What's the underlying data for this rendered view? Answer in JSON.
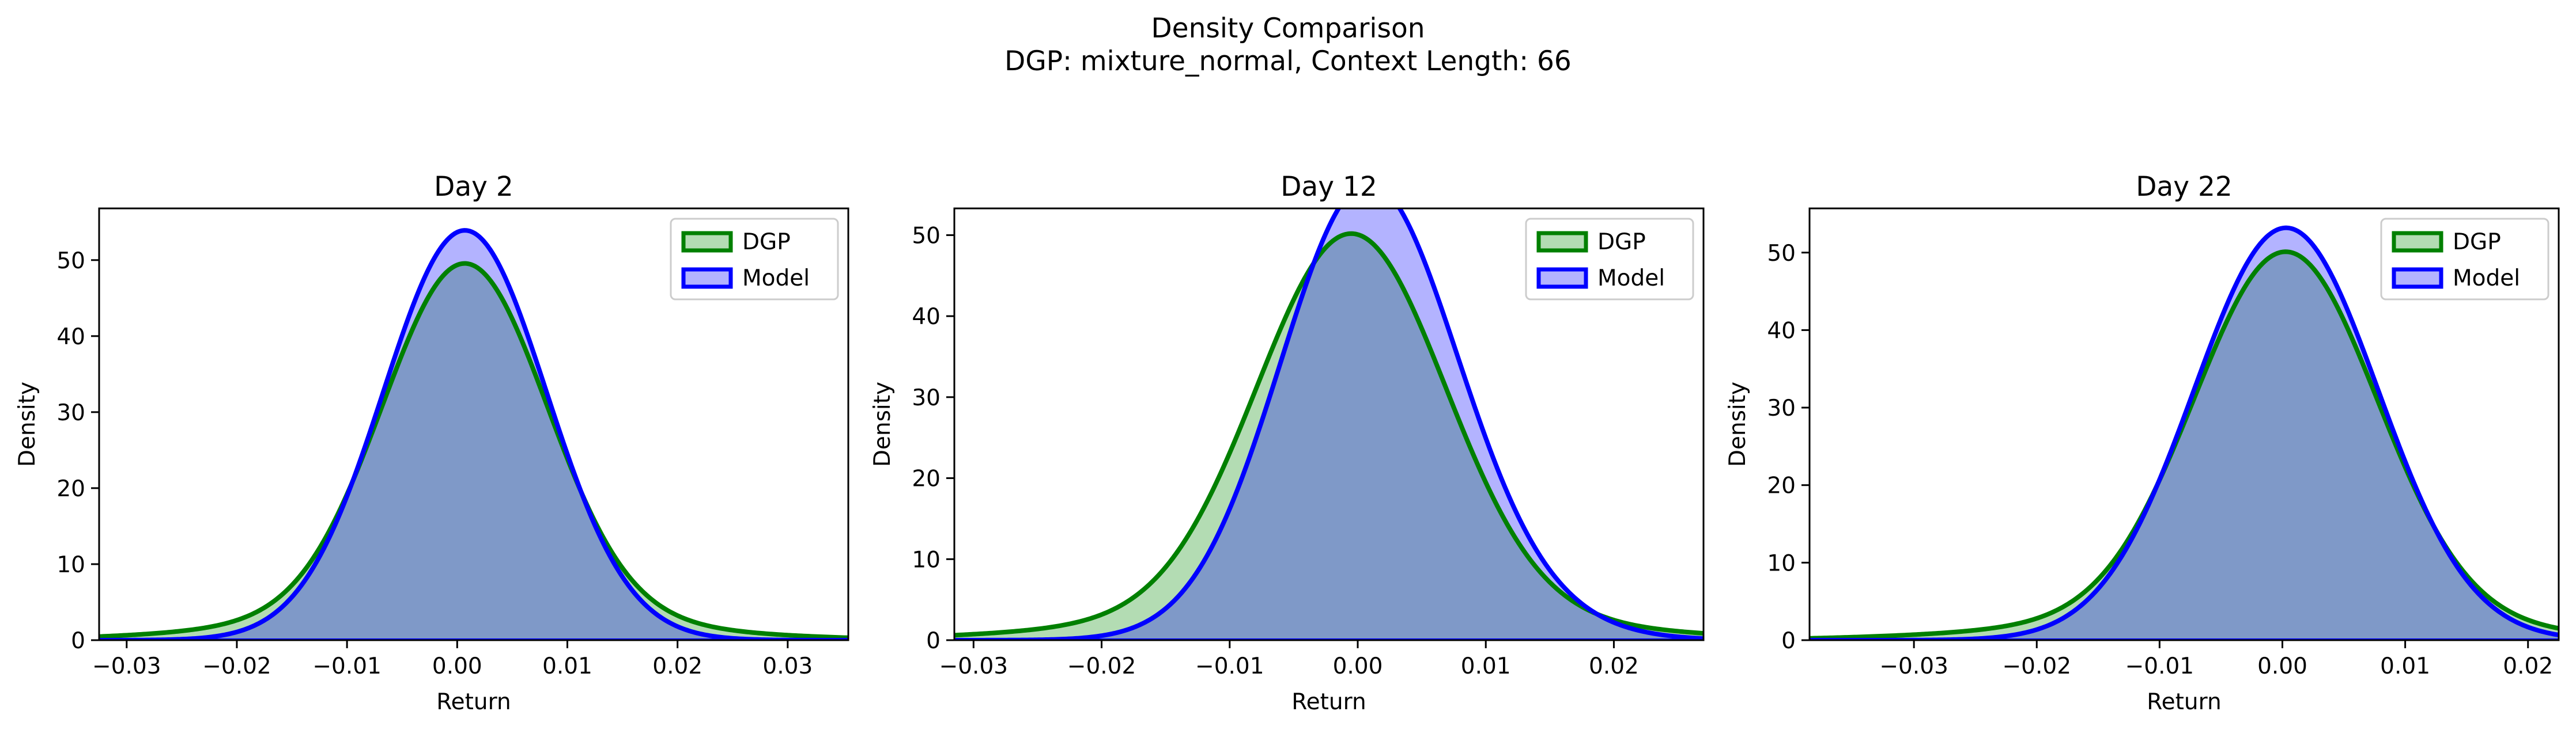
{
  "figure": {
    "title_line1": "Density Comparison",
    "title_line2": "DGP: mixture_normal, Context Length: 66"
  },
  "colors": {
    "dgp_line": "#008000",
    "dgp_fill": "#b3dcb3",
    "model_line": "#0000ff",
    "model_fill": "#b3b3ff",
    "overlap_fill": "#7f99c8"
  },
  "chart_data": [
    {
      "type": "area",
      "title": "Day 2",
      "xlabel": "Return",
      "ylabel": "Density",
      "xlim": [
        -0.0325,
        0.0355
      ],
      "ylim": [
        0,
        56.8
      ],
      "xticks": [
        -0.03,
        -0.02,
        -0.01,
        0.0,
        0.01,
        0.02,
        0.03
      ],
      "xtick_labels": [
        "−0.03",
        "−0.02",
        "−0.01",
        "0.00",
        "0.01",
        "0.02",
        "0.03"
      ],
      "yticks": [
        0,
        10,
        20,
        30,
        40,
        50
      ],
      "ytick_labels": [
        "0",
        "10",
        "20",
        "30",
        "40",
        "50"
      ],
      "legend": {
        "position": "top-right",
        "entries": [
          "DGP",
          "Model"
        ]
      },
      "series": [
        {
          "name": "DGP",
          "type": "normal_mixture",
          "components": [
            {
              "w": 0.85,
              "mu": 0.0007,
              "sigma": 0.0074
            },
            {
              "w": 0.15,
              "mu": 0.0,
              "sigma": 0.016
            }
          ]
        },
        {
          "name": "Model",
          "type": "normal_mixture",
          "components": [
            {
              "w": 1.0,
              "mu": 0.0007,
              "sigma": 0.0074
            }
          ]
        }
      ]
    },
    {
      "type": "area",
      "title": "Day 12",
      "xlabel": "Return",
      "ylabel": "Density",
      "xlim": [
        -0.0315,
        0.027
      ],
      "ylim": [
        0,
        53.3
      ],
      "xticks": [
        -0.03,
        -0.02,
        -0.01,
        0.0,
        0.01,
        0.02
      ],
      "xtick_labels": [
        "−0.03",
        "−0.02",
        "−0.01",
        "0.00",
        "0.01",
        "0.02"
      ],
      "yticks": [
        0,
        10,
        20,
        30,
        40,
        50
      ],
      "ytick_labels": [
        "0",
        "10",
        "20",
        "30",
        "40",
        "50"
      ],
      "legend": {
        "position": "top-right",
        "entries": [
          "DGP",
          "Model"
        ]
      },
      "series": [
        {
          "name": "DGP",
          "type": "normal_mixture",
          "components": [
            {
              "w": 0.85,
              "mu": -0.0005,
              "sigma": 0.0073
            },
            {
              "w": 0.15,
              "mu": -0.001,
              "sigma": 0.016
            }
          ]
        },
        {
          "name": "Model",
          "type": "normal_mixture",
          "components": [
            {
              "w": 0.8,
              "mu": 0.0004,
              "sigma": 0.0067
            },
            {
              "w": 0.2,
              "mu": 0.0045,
              "sigma": 0.008
            }
          ]
        }
      ]
    },
    {
      "type": "area",
      "title": "Day 22",
      "xlabel": "Return",
      "ylabel": "Density",
      "xlim": [
        -0.0385,
        0.0225
      ],
      "ylim": [
        0,
        55.7
      ],
      "xticks": [
        -0.03,
        -0.02,
        -0.01,
        0.0,
        0.01,
        0.02
      ],
      "xtick_labels": [
        "−0.03",
        "−0.02",
        "−0.01",
        "0.00",
        "0.01",
        "0.02"
      ],
      "yticks": [
        0,
        10,
        20,
        30,
        40,
        50
      ],
      "ytick_labels": [
        "0",
        "10",
        "20",
        "30",
        "40",
        "50"
      ],
      "legend": {
        "position": "top-right",
        "entries": [
          "DGP",
          "Model"
        ]
      },
      "series": [
        {
          "name": "DGP",
          "type": "normal_mixture",
          "components": [
            {
              "w": 0.87,
              "mu": 0.0003,
              "sigma": 0.0074
            },
            {
              "w": 0.13,
              "mu": -0.002,
              "sigma": 0.016
            }
          ]
        },
        {
          "name": "Model",
          "type": "normal_mixture",
          "components": [
            {
              "w": 1.0,
              "mu": 0.0003,
              "sigma": 0.0075
            }
          ]
        }
      ]
    }
  ]
}
